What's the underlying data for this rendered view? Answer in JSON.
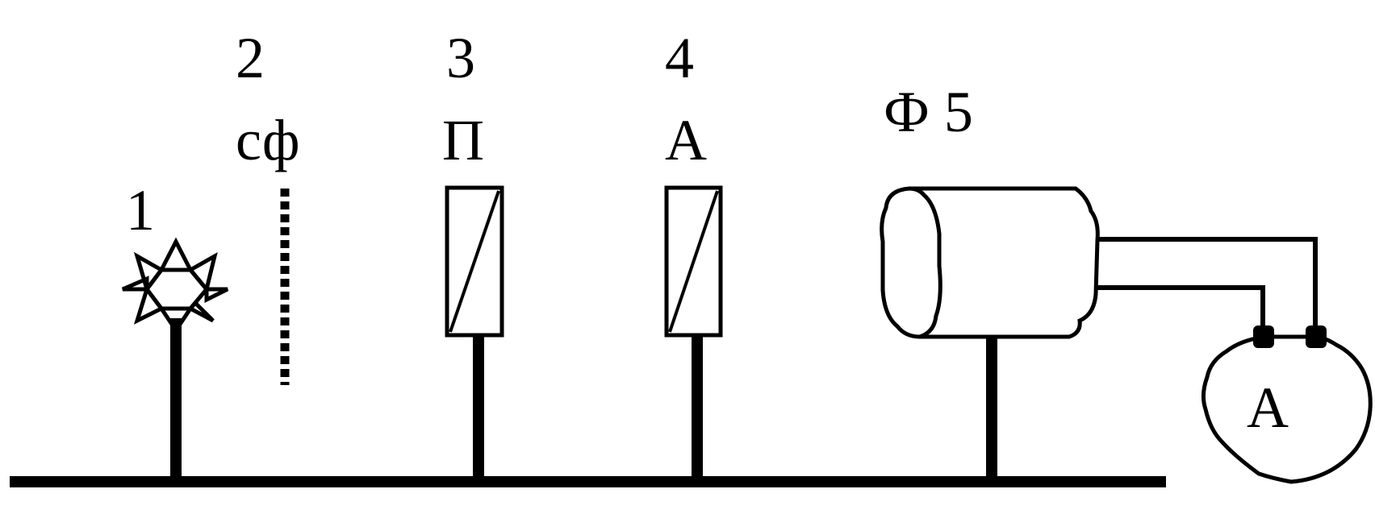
{
  "labels": {
    "source_number": "1",
    "filter_number": "2",
    "filter_name": "сф",
    "polarizer_number": "3",
    "polarizer_name": "П",
    "analyzer_number": "4",
    "analyzer_name": "А",
    "photocell_name": "Ф 5",
    "ammeter_name": "А"
  },
  "colors": {
    "ink": "#000000",
    "background": "#ffffff"
  }
}
